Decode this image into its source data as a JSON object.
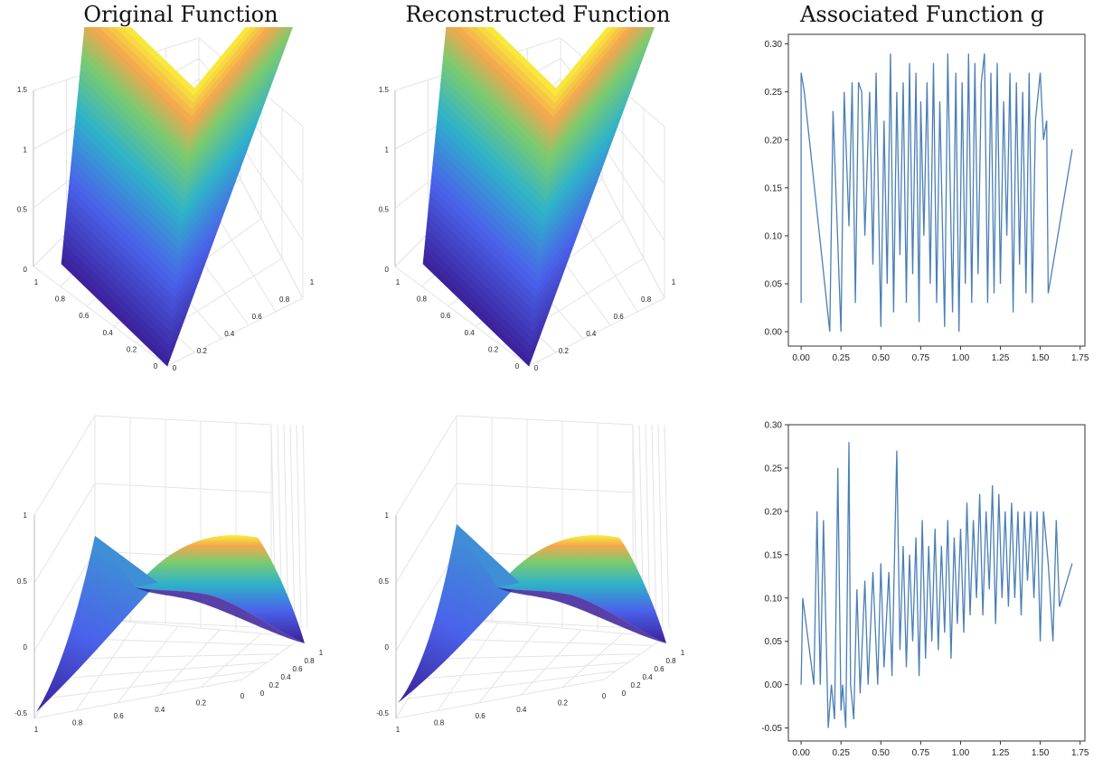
{
  "titles": {
    "col1": "Original Function",
    "col2": "Reconstructed Function",
    "col3": "Associated Function g"
  },
  "colors": {
    "line": "#4a7fb5",
    "surface_low": "#3b1f99",
    "surface_mid": "#3f8fd6",
    "surface_high": "#f9f03a",
    "grid": "#e4e4e4"
  },
  "chart_data": [
    {
      "type": "surface",
      "panel": "top-left",
      "zlim": [
        0,
        1.5
      ],
      "z_ticks": [
        "0",
        "0.5",
        "1",
        "1.5"
      ],
      "left_axis_ticks": [
        "0",
        "0.2",
        "0.4",
        "0.6",
        "0.8",
        "1"
      ],
      "right_axis_ticks": [
        "0",
        "0.2",
        "0.4",
        "0.6",
        "0.8",
        "1"
      ],
      "corner_z": {
        "x0y0": 0,
        "x1y0": 0,
        "x0y1": 1.4,
        "x1y1": 1.4
      }
    },
    {
      "type": "surface",
      "panel": "top-middle",
      "zlim": [
        0,
        1.5
      ],
      "z_ticks": [
        "0",
        "0.5",
        "1",
        "1.5"
      ],
      "left_axis_ticks": [
        "0",
        "0.2",
        "0.4",
        "0.6",
        "0.8",
        "1"
      ],
      "right_axis_ticks": [
        "0",
        "0.2",
        "0.4",
        "0.6",
        "0.8",
        "1"
      ],
      "corner_z": {
        "x0y0": 0,
        "x1y0": 0,
        "x0y1": 1.4,
        "x1y1": 1.4
      }
    },
    {
      "type": "line",
      "panel": "top-right",
      "xlim": [
        -0.08,
        1.78
      ],
      "ylim": [
        -0.015,
        0.31
      ],
      "x_ticks": [
        "0.00",
        "0.25",
        "0.50",
        "0.75",
        "1.00",
        "1.25",
        "1.50",
        "1.75"
      ],
      "x_tick_values": [
        0,
        0.25,
        0.5,
        0.75,
        1.0,
        1.25,
        1.5,
        1.75
      ],
      "y_ticks": [
        "0.00",
        "0.05",
        "0.10",
        "0.15",
        "0.20",
        "0.25",
        "0.30"
      ],
      "y_tick_values": [
        0,
        0.05,
        0.1,
        0.15,
        0.2,
        0.25,
        0.3
      ],
      "series": [
        {
          "x": [
            0.0,
            0.0,
            0.02,
            0.18,
            0.2,
            0.25,
            0.27,
            0.3,
            0.32,
            0.34,
            0.36,
            0.38,
            0.4,
            0.43,
            0.45,
            0.47,
            0.5,
            0.52,
            0.54,
            0.56,
            0.58,
            0.6,
            0.62,
            0.64,
            0.66,
            0.68,
            0.7,
            0.72,
            0.74,
            0.75,
            0.77,
            0.79,
            0.81,
            0.83,
            0.85,
            0.87,
            0.9,
            0.92,
            0.95,
            0.97,
            0.99,
            1.01,
            1.03,
            1.05,
            1.07,
            1.09,
            1.11,
            1.13,
            1.15,
            1.17,
            1.19,
            1.21,
            1.23,
            1.25,
            1.27,
            1.29,
            1.31,
            1.33,
            1.35,
            1.37,
            1.39,
            1.41,
            1.43,
            1.45,
            1.47,
            1.5,
            1.52,
            1.54,
            1.55,
            1.7
          ],
          "y": [
            0.03,
            0.27,
            0.25,
            0.0,
            0.23,
            0.0,
            0.25,
            0.11,
            0.26,
            0.03,
            0.26,
            0.25,
            0.1,
            0.25,
            0.07,
            0.27,
            0.005,
            0.22,
            0.05,
            0.29,
            0.02,
            0.25,
            0.08,
            0.26,
            0.03,
            0.28,
            0.06,
            0.27,
            0.01,
            0.24,
            0.1,
            0.26,
            0.05,
            0.28,
            0.03,
            0.24,
            0.005,
            0.29,
            0.02,
            0.27,
            0.0,
            0.26,
            0.05,
            0.29,
            0.03,
            0.28,
            0.06,
            0.26,
            0.29,
            0.03,
            0.27,
            0.04,
            0.28,
            0.05,
            0.24,
            0.1,
            0.27,
            0.02,
            0.26,
            0.07,
            0.25,
            0.04,
            0.27,
            0.03,
            0.22,
            0.27,
            0.2,
            0.22,
            0.04,
            0.19
          ]
        }
      ]
    },
    {
      "type": "surface",
      "panel": "bottom-left",
      "zlim": [
        -0.5,
        1
      ],
      "z_ticks": [
        "-0.5",
        "0",
        "0.5",
        "1"
      ],
      "left_axis_ticks": [
        "1",
        "0.8",
        "0.6",
        "0.4",
        "0.2",
        "0"
      ],
      "right_axis_ticks": [
        "0",
        "0.2",
        "0.4",
        "0.6",
        "0.8",
        "1"
      ]
    },
    {
      "type": "surface",
      "panel": "bottom-middle",
      "zlim": [
        -0.5,
        1
      ],
      "z_ticks": [
        "-0.5",
        "0",
        "0.5",
        "1"
      ],
      "left_axis_ticks": [
        "1",
        "0.8",
        "0.6",
        "0.4",
        "0.2",
        "0"
      ],
      "right_axis_ticks": [
        "0",
        "0.2",
        "0.4",
        "0.6",
        "0.8",
        "1"
      ]
    },
    {
      "type": "line",
      "panel": "bottom-right",
      "xlim": [
        -0.08,
        1.78
      ],
      "ylim": [
        -0.065,
        0.3
      ],
      "x_ticks": [
        "0.00",
        "0.25",
        "0.50",
        "0.75",
        "1.00",
        "1.25",
        "1.50",
        "1.75"
      ],
      "x_tick_values": [
        0,
        0.25,
        0.5,
        0.75,
        1.0,
        1.25,
        1.5,
        1.75
      ],
      "y_ticks": [
        "-0.05",
        "0.00",
        "0.05",
        "0.10",
        "0.15",
        "0.20",
        "0.25",
        "0.30"
      ],
      "y_tick_values": [
        -0.05,
        0,
        0.05,
        0.1,
        0.15,
        0.2,
        0.25,
        0.3
      ],
      "series": [
        {
          "x": [
            0.0,
            0.01,
            0.08,
            0.1,
            0.12,
            0.14,
            0.17,
            0.19,
            0.21,
            0.23,
            0.25,
            0.26,
            0.28,
            0.3,
            0.31,
            0.33,
            0.35,
            0.37,
            0.4,
            0.42,
            0.45,
            0.48,
            0.5,
            0.52,
            0.55,
            0.57,
            0.6,
            0.62,
            0.64,
            0.66,
            0.68,
            0.7,
            0.72,
            0.74,
            0.76,
            0.78,
            0.8,
            0.82,
            0.84,
            0.86,
            0.88,
            0.9,
            0.92,
            0.94,
            0.96,
            0.98,
            1.0,
            1.02,
            1.04,
            1.06,
            1.08,
            1.1,
            1.12,
            1.14,
            1.16,
            1.18,
            1.2,
            1.22,
            1.24,
            1.26,
            1.28,
            1.3,
            1.32,
            1.34,
            1.36,
            1.38,
            1.4,
            1.42,
            1.44,
            1.46,
            1.48,
            1.5,
            1.52,
            1.55,
            1.58,
            1.6,
            1.62,
            1.7
          ],
          "y": [
            0.0,
            0.1,
            0.0,
            0.2,
            0.0,
            0.19,
            -0.05,
            0.0,
            -0.04,
            0.25,
            -0.03,
            0.0,
            -0.05,
            0.28,
            0.0,
            -0.04,
            0.11,
            -0.01,
            0.12,
            0.0,
            0.13,
            0.0,
            0.14,
            0.02,
            0.13,
            0.01,
            0.27,
            0.04,
            0.16,
            0.02,
            0.15,
            0.05,
            0.17,
            0.01,
            0.19,
            0.03,
            0.16,
            0.05,
            0.18,
            0.04,
            0.16,
            0.06,
            0.19,
            0.03,
            0.17,
            0.07,
            0.18,
            0.06,
            0.21,
            0.08,
            0.19,
            0.1,
            0.22,
            0.08,
            0.2,
            0.11,
            0.23,
            0.07,
            0.22,
            0.1,
            0.2,
            0.09,
            0.21,
            0.1,
            0.2,
            0.08,
            0.2,
            0.12,
            0.2,
            0.1,
            0.2,
            0.05,
            0.2,
            0.14,
            0.05,
            0.19,
            0.09,
            0.14
          ]
        }
      ]
    }
  ]
}
